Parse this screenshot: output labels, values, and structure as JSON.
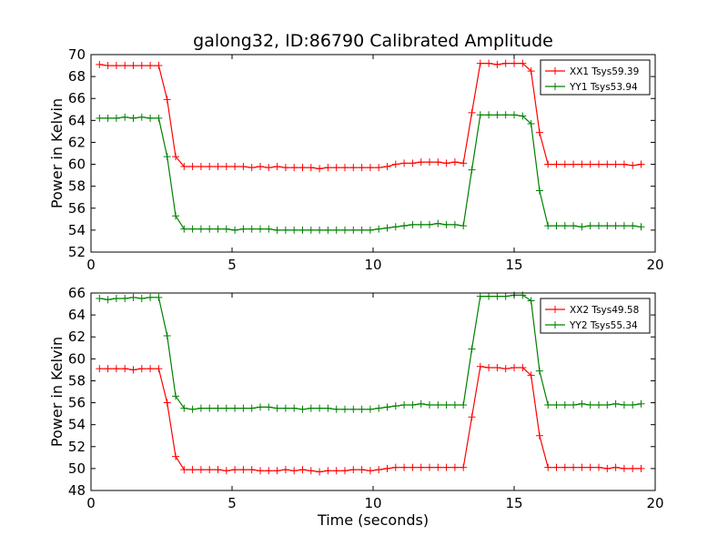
{
  "chart_data": [
    {
      "type": "line",
      "title": "galong32, ID:86790 Calibrated Amplitude",
      "xlabel": "",
      "ylabel": "Power in Kelvin",
      "xlim": [
        0,
        20
      ],
      "ylim": [
        52,
        70
      ],
      "xticks": [
        "0",
        "5",
        "10",
        "15",
        "20"
      ],
      "yticks": [
        "52",
        "54",
        "56",
        "58",
        "60",
        "62",
        "64",
        "66",
        "68",
        "70"
      ],
      "legend_position": "top-right",
      "grid": false,
      "x": [
        0.3,
        0.6,
        0.9,
        1.2,
        1.5,
        1.8,
        2.1,
        2.4,
        2.7,
        3.0,
        3.3,
        3.6,
        3.9,
        4.2,
        4.5,
        4.8,
        5.1,
        5.4,
        5.7,
        6.0,
        6.3,
        6.6,
        6.9,
        7.2,
        7.5,
        7.8,
        8.1,
        8.4,
        8.7,
        9.0,
        9.3,
        9.6,
        9.9,
        10.2,
        10.5,
        10.8,
        11.1,
        11.4,
        11.7,
        12.0,
        12.3,
        12.6,
        12.9,
        13.2,
        13.5,
        13.8,
        14.1,
        14.4,
        14.7,
        15.0,
        15.3,
        15.6,
        15.9,
        16.2,
        16.5,
        16.8,
        17.1,
        17.4,
        17.7,
        18.0,
        18.3,
        18.6,
        18.9,
        19.2,
        19.5
      ],
      "series": [
        {
          "name": "XX1 Tsys59.39",
          "color": "#ff0000",
          "values": [
            69.1,
            69.0,
            69.0,
            69.0,
            69.0,
            69.0,
            69.0,
            69.0,
            65.9,
            60.7,
            59.8,
            59.8,
            59.8,
            59.8,
            59.8,
            59.8,
            59.8,
            59.8,
            59.7,
            59.8,
            59.7,
            59.8,
            59.7,
            59.7,
            59.7,
            59.7,
            59.6,
            59.7,
            59.7,
            59.7,
            59.7,
            59.7,
            59.7,
            59.7,
            59.8,
            60.0,
            60.1,
            60.1,
            60.2,
            60.2,
            60.2,
            60.1,
            60.2,
            60.1,
            64.7,
            69.2,
            69.2,
            69.1,
            69.2,
            69.2,
            69.2,
            68.5,
            62.9,
            60.0,
            60.0,
            60.0,
            60.0,
            60.0,
            60.0,
            60.0,
            60.0,
            60.0,
            60.0,
            59.9,
            60.0
          ]
        },
        {
          "name": "YY1 Tsys53.94",
          "color": "#008000",
          "values": [
            64.2,
            64.2,
            64.2,
            64.3,
            64.2,
            64.3,
            64.2,
            64.2,
            60.7,
            55.3,
            54.1,
            54.1,
            54.1,
            54.1,
            54.1,
            54.1,
            54.0,
            54.1,
            54.1,
            54.1,
            54.1,
            54.0,
            54.0,
            54.0,
            54.0,
            54.0,
            54.0,
            54.0,
            54.0,
            54.0,
            54.0,
            54.0,
            54.0,
            54.1,
            54.2,
            54.3,
            54.4,
            54.5,
            54.5,
            54.5,
            54.6,
            54.5,
            54.5,
            54.4,
            59.5,
            64.5,
            64.5,
            64.5,
            64.5,
            64.5,
            64.4,
            63.7,
            57.6,
            54.4,
            54.4,
            54.4,
            54.4,
            54.3,
            54.4,
            54.4,
            54.4,
            54.4,
            54.4,
            54.4,
            54.3
          ]
        }
      ]
    },
    {
      "type": "line",
      "title": "",
      "xlabel": "Time (seconds)",
      "ylabel": "Power in Kelvin",
      "xlim": [
        0,
        20
      ],
      "ylim": [
        48,
        66
      ],
      "xticks": [
        "0",
        "5",
        "10",
        "15",
        "20"
      ],
      "yticks": [
        "48",
        "50",
        "52",
        "54",
        "56",
        "58",
        "60",
        "62",
        "64",
        "66"
      ],
      "legend_position": "top-right",
      "grid": false,
      "x": [
        0.3,
        0.6,
        0.9,
        1.2,
        1.5,
        1.8,
        2.1,
        2.4,
        2.7,
        3.0,
        3.3,
        3.6,
        3.9,
        4.2,
        4.5,
        4.8,
        5.1,
        5.4,
        5.7,
        6.0,
        6.3,
        6.6,
        6.9,
        7.2,
        7.5,
        7.8,
        8.1,
        8.4,
        8.7,
        9.0,
        9.3,
        9.6,
        9.9,
        10.2,
        10.5,
        10.8,
        11.1,
        11.4,
        11.7,
        12.0,
        12.3,
        12.6,
        12.9,
        13.2,
        13.5,
        13.8,
        14.1,
        14.4,
        14.7,
        15.0,
        15.3,
        15.6,
        15.9,
        16.2,
        16.5,
        16.8,
        17.1,
        17.4,
        17.7,
        18.0,
        18.3,
        18.6,
        18.9,
        19.2,
        19.5
      ],
      "series": [
        {
          "name": "XX2 Tsys49.58",
          "color": "#ff0000",
          "values": [
            59.1,
            59.1,
            59.1,
            59.1,
            59.0,
            59.1,
            59.1,
            59.1,
            56.0,
            51.1,
            49.9,
            49.9,
            49.9,
            49.9,
            49.9,
            49.8,
            49.9,
            49.9,
            49.9,
            49.8,
            49.8,
            49.8,
            49.9,
            49.8,
            49.9,
            49.8,
            49.7,
            49.8,
            49.8,
            49.8,
            49.9,
            49.9,
            49.8,
            49.9,
            50.0,
            50.1,
            50.1,
            50.1,
            50.1,
            50.1,
            50.1,
            50.1,
            50.1,
            50.1,
            54.7,
            59.3,
            59.2,
            59.2,
            59.1,
            59.2,
            59.2,
            58.5,
            53.0,
            50.1,
            50.1,
            50.1,
            50.1,
            50.1,
            50.1,
            50.1,
            50.0,
            50.1,
            50.0,
            50.0,
            50.0
          ]
        },
        {
          "name": "YY2 Tsys55.34",
          "color": "#008000",
          "values": [
            65.5,
            65.4,
            65.5,
            65.5,
            65.6,
            65.5,
            65.6,
            65.6,
            62.1,
            56.6,
            55.5,
            55.4,
            55.5,
            55.5,
            55.5,
            55.5,
            55.5,
            55.5,
            55.5,
            55.6,
            55.6,
            55.5,
            55.5,
            55.5,
            55.4,
            55.5,
            55.5,
            55.5,
            55.4,
            55.4,
            55.4,
            55.4,
            55.4,
            55.5,
            55.6,
            55.7,
            55.8,
            55.8,
            55.9,
            55.8,
            55.8,
            55.8,
            55.8,
            55.8,
            60.9,
            65.7,
            65.7,
            65.7,
            65.7,
            65.8,
            65.8,
            65.3,
            58.9,
            55.8,
            55.8,
            55.8,
            55.8,
            55.9,
            55.8,
            55.8,
            55.8,
            55.9,
            55.8,
            55.8,
            55.9
          ]
        }
      ]
    }
  ]
}
